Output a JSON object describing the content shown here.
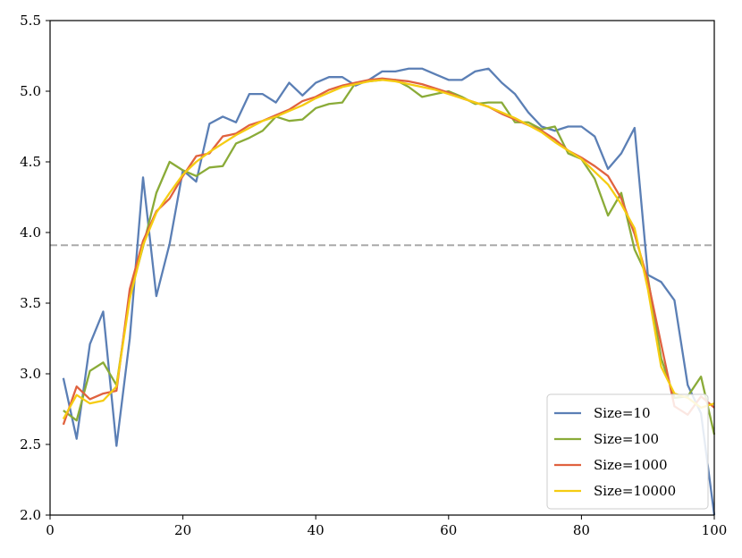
{
  "chart_data": {
    "type": "line",
    "title": "",
    "xlabel": "",
    "ylabel": "",
    "xlim": [
      0,
      100
    ],
    "ylim": [
      2.0,
      5.5
    ],
    "x_ticks": [
      "0",
      "20",
      "40",
      "60",
      "80",
      "100"
    ],
    "y_ticks": [
      "2.0",
      "2.5",
      "3.0",
      "3.5",
      "4.0",
      "4.5",
      "5.0",
      "5.5"
    ],
    "x_tick_values": [
      0,
      20,
      40,
      60,
      80,
      100
    ],
    "y_tick_values": [
      2.0,
      2.5,
      3.0,
      3.5,
      4.0,
      4.5,
      5.0,
      5.5
    ],
    "grid": false,
    "legend_position": "lower-right",
    "reference_line": {
      "y": 3.91,
      "style": "dashed",
      "color": "#aaaaaa"
    },
    "x": [
      2,
      4,
      6,
      8,
      10,
      12,
      14,
      16,
      18,
      20,
      22,
      24,
      26,
      28,
      30,
      32,
      34,
      36,
      38,
      40,
      42,
      44,
      46,
      48,
      50,
      52,
      54,
      56,
      58,
      60,
      62,
      64,
      66,
      68,
      70,
      72,
      74,
      76,
      78,
      80,
      82,
      84,
      86,
      88,
      90,
      92,
      94,
      96,
      98,
      100
    ],
    "series": [
      {
        "name": "Size=10",
        "color": "#5b7fb5",
        "values": [
          2.97,
          2.54,
          3.21,
          3.44,
          2.49,
          3.25,
          4.39,
          3.55,
          3.92,
          4.44,
          4.36,
          4.77,
          4.82,
          4.78,
          4.98,
          4.98,
          4.92,
          5.06,
          4.97,
          5.06,
          5.1,
          5.1,
          5.04,
          5.08,
          5.14,
          5.14,
          5.16,
          5.16,
          5.12,
          5.08,
          5.08,
          5.14,
          5.16,
          5.06,
          4.98,
          4.85,
          4.75,
          4.72,
          4.75,
          4.75,
          4.68,
          4.45,
          4.56,
          4.74,
          3.7,
          3.65,
          3.52,
          2.92,
          2.72,
          2.0
        ]
      },
      {
        "name": "Size=100",
        "color": "#8aab38",
        "values": [
          2.74,
          2.67,
          3.02,
          3.08,
          2.92,
          3.55,
          3.9,
          4.28,
          4.5,
          4.44,
          4.4,
          4.46,
          4.47,
          4.63,
          4.67,
          4.72,
          4.82,
          4.79,
          4.8,
          4.88,
          4.91,
          4.92,
          5.06,
          5.07,
          5.08,
          5.08,
          5.03,
          4.96,
          4.98,
          5.0,
          4.96,
          4.91,
          4.92,
          4.92,
          4.78,
          4.78,
          4.73,
          4.75,
          4.56,
          4.52,
          4.38,
          4.12,
          4.28,
          3.88,
          3.68,
          3.11,
          2.83,
          2.84,
          2.98,
          2.57
        ]
      },
      {
        "name": "Size=1000",
        "color": "#e0623f",
        "values": [
          2.64,
          2.91,
          2.82,
          2.86,
          2.88,
          3.6,
          3.94,
          4.15,
          4.24,
          4.4,
          4.54,
          4.56,
          4.68,
          4.7,
          4.76,
          4.79,
          4.83,
          4.87,
          4.93,
          4.96,
          5.01,
          5.04,
          5.06,
          5.08,
          5.09,
          5.08,
          5.07,
          5.05,
          5.02,
          4.99,
          4.95,
          4.92,
          4.89,
          4.84,
          4.8,
          4.76,
          4.72,
          4.66,
          4.58,
          4.53,
          4.47,
          4.4,
          4.24,
          3.99,
          3.66,
          3.21,
          2.77,
          2.71,
          2.84,
          2.76
        ]
      },
      {
        "name": "Size=10000",
        "color": "#f5cc12",
        "values": [
          2.68,
          2.85,
          2.79,
          2.81,
          2.91,
          3.53,
          3.91,
          4.14,
          4.28,
          4.41,
          4.5,
          4.57,
          4.63,
          4.69,
          4.74,
          4.79,
          4.82,
          4.86,
          4.9,
          4.95,
          4.99,
          5.03,
          5.05,
          5.07,
          5.08,
          5.07,
          5.05,
          5.03,
          5.01,
          4.98,
          4.95,
          4.92,
          4.89,
          4.85,
          4.81,
          4.76,
          4.71,
          4.64,
          4.58,
          4.52,
          4.43,
          4.34,
          4.2,
          4.03,
          3.6,
          3.05,
          2.86,
          2.83,
          2.76,
          2.79
        ]
      }
    ]
  }
}
